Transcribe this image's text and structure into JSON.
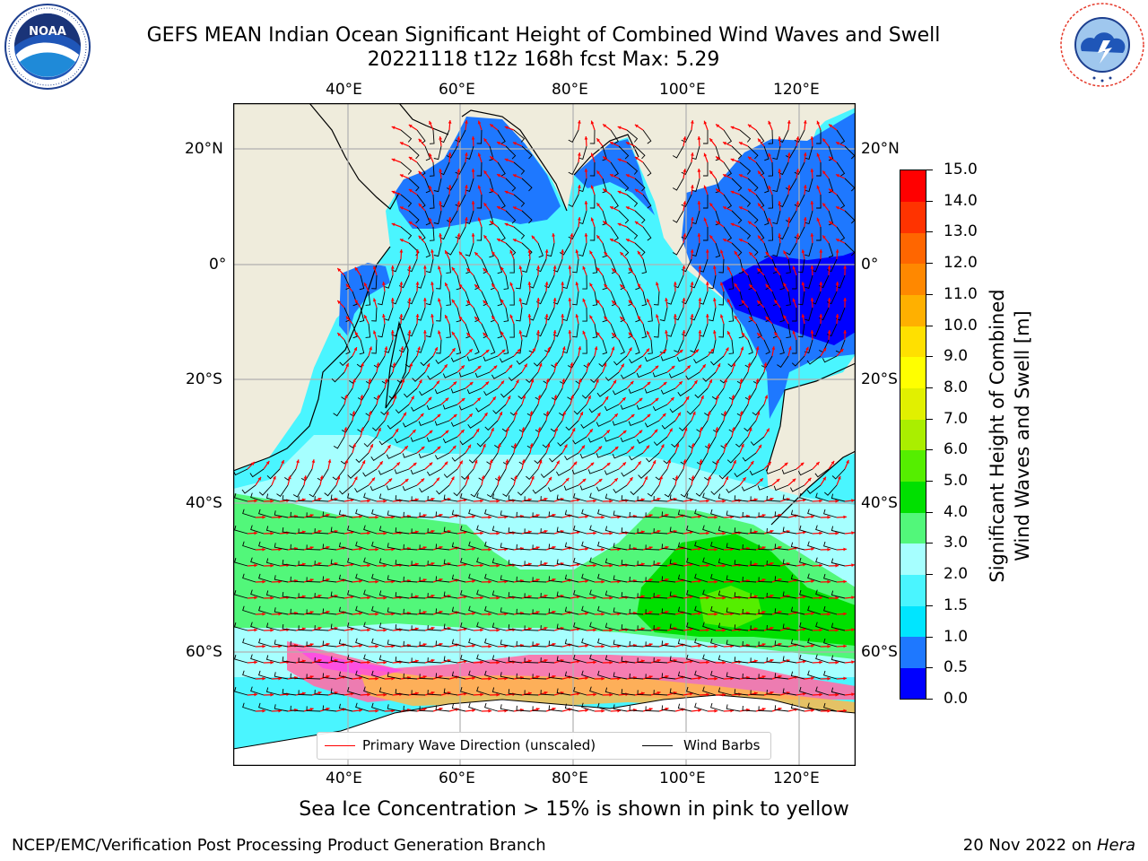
{
  "header": {
    "title_line1": "GEFS MEAN Indian Ocean Significant Height of Combined Wind Waves and Swell",
    "title_line2": "20221118 t12z 168h fcst   Max: 5.29"
  },
  "logos": {
    "noaa": {
      "name": "NOAA",
      "ring_text": "NATIONAL OCEANIC AND ATMOSPHERIC ADMINISTRATION",
      "bottom_text": "U.S. DEPARTMENT OF COMMERCE"
    },
    "nws": {
      "ring_text": "NATIONAL WEATHER SERVICE"
    }
  },
  "map": {
    "lon_ticks": [
      "40°E",
      "60°E",
      "80°E",
      "100°E",
      "120°E"
    ],
    "lat_ticks": [
      "20°N",
      "0°",
      "20°S",
      "40°S",
      "60°S"
    ],
    "colors": {
      "land": "#efecdc",
      "ocean_default": "#2a6aed",
      "grid": "#b0b0b0",
      "coast": "#000000",
      "wave_arrow": "#ff0000",
      "wind_barb": "#000000"
    }
  },
  "legend": {
    "items": [
      {
        "label": "Primary Wave Direction (unscaled)",
        "color": "#ff0000"
      },
      {
        "label": "Wind Barbs",
        "color": "#000000"
      }
    ]
  },
  "colorbar": {
    "label_line1": "Significant Height of Combined",
    "label_line2": "Wind Waves and Swell [m]",
    "ticks": [
      "0.0",
      "0.5",
      "1.0",
      "1.5",
      "2.0",
      "3.0",
      "4.0",
      "5.0",
      "6.0",
      "7.0",
      "8.0",
      "9.0",
      "10.0",
      "11.0",
      "12.0",
      "13.0",
      "14.0",
      "15.0"
    ],
    "colors": [
      "#0000ff",
      "#1e78ff",
      "#00e5ff",
      "#4af5ff",
      "#a6ffff",
      "#52f77a",
      "#00e000",
      "#55ee00",
      "#aaee00",
      "#e1f000",
      "#ffff00",
      "#ffe000",
      "#ffb000",
      "#ff8800",
      "#ff6600",
      "#ff3300",
      "#ff0000"
    ]
  },
  "ice_note": "Sea Ice Concentration > 15% is shown in pink to yellow",
  "footer": {
    "left": "NCEP/EMC/Verification Post Processing Product Generation Branch",
    "date": "20 Nov 2022 on ",
    "machine": "Hera"
  }
}
